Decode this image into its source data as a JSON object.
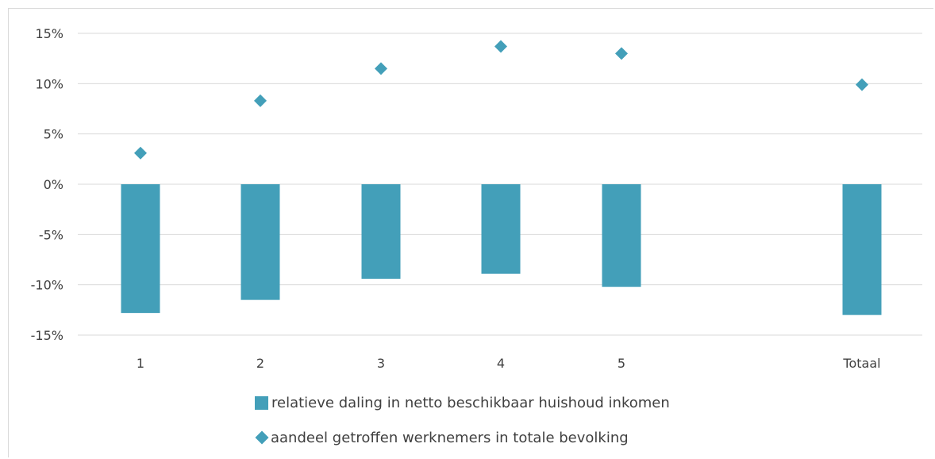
{
  "chart_data": {
    "type": "bar",
    "categories": [
      "1",
      "2",
      "3",
      "4",
      "5",
      "Totaal"
    ],
    "series": [
      {
        "name": "relatieve daling in netto beschikbaar huishoud inkomen",
        "kind": "bar",
        "color": "#439fb9",
        "values": [
          -12.8,
          -11.5,
          -9.4,
          -8.9,
          -10.2,
          -13.0
        ]
      },
      {
        "name": "aandeel getroffen werknemers in totale bevolking",
        "kind": "diamond",
        "color": "#439fb9",
        "values": [
          3.1,
          8.3,
          11.5,
          13.7,
          13.0,
          9.9
        ]
      }
    ],
    "yticks": [
      "15%",
      "10%",
      "5%",
      "0%",
      "-5%",
      "-10%",
      "-15%"
    ],
    "ylim": [
      -15,
      15
    ],
    "grid": true,
    "legend_position": "bottom"
  }
}
